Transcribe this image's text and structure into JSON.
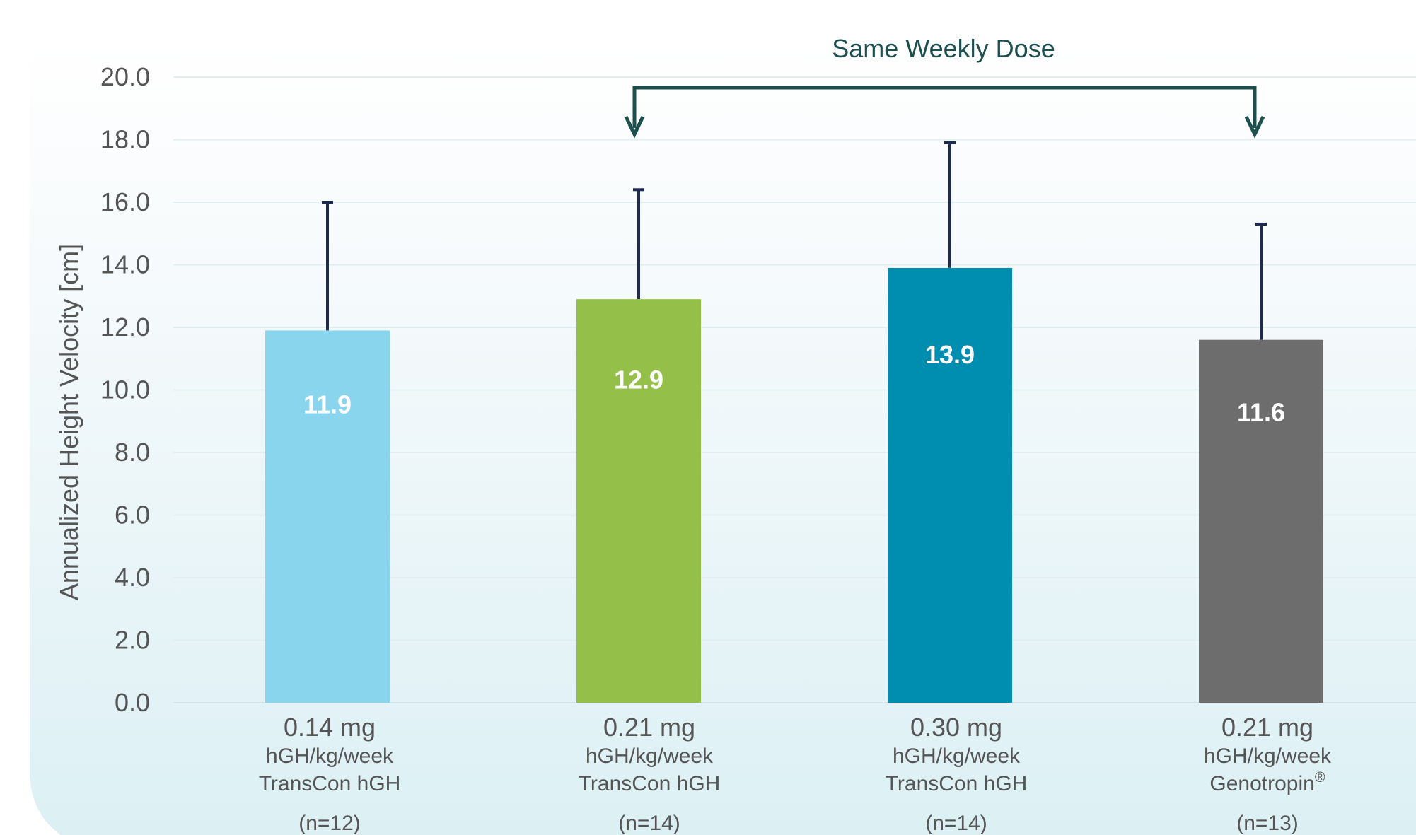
{
  "chart_data": {
    "type": "bar",
    "title": "",
    "xlabel": "",
    "ylabel": "Annualized Height Velocity [cm]",
    "ylim": [
      0,
      20
    ],
    "yticks": [
      "0.0",
      "2.0",
      "4.0",
      "6.0",
      "8.0",
      "10.0",
      "12.0",
      "14.0",
      "16.0",
      "18.0",
      "20.0"
    ],
    "grid": true,
    "categories": [
      {
        "dose": "0.14 mg",
        "unit": "hGH/kg/week",
        "product": "TransCon hGH",
        "n": "(n=12)"
      },
      {
        "dose": "0.21 mg",
        "unit": "hGH/kg/week",
        "product": "TransCon hGH",
        "n": "(n=14)"
      },
      {
        "dose": "0.30 mg",
        "unit": "hGH/kg/week",
        "product": "TransCon hGH",
        "n": "(n=14)"
      },
      {
        "dose": "0.21 mg",
        "unit": "hGH/kg/week",
        "product": "Genotropin",
        "product_superscript": "®",
        "n": "(n=13)"
      }
    ],
    "values": [
      11.9,
      12.9,
      13.9,
      11.6
    ],
    "value_labels": [
      "11.9",
      "12.9",
      "13.9",
      "11.6"
    ],
    "error_upper": [
      16.0,
      16.4,
      17.9,
      15.3
    ],
    "colors": [
      "#8ad5ee",
      "#94c04a",
      "#008eb0",
      "#6d6d6d"
    ],
    "annotation": {
      "text": "Same Weekly Dose",
      "from_category": 1,
      "to_category": 3,
      "color": "#1e4f4f"
    }
  }
}
